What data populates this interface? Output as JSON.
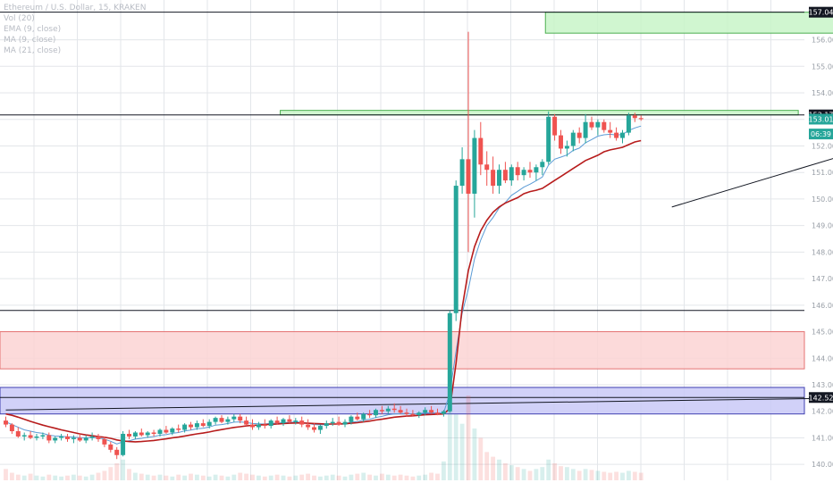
{
  "header": {
    "symbol_line": "Ethereum / U.S. Dollar, 15, KRAKEN",
    "indicators": [
      "Vol (20)",
      "EMA (9, close)",
      "MA (9, close)",
      "MA (21, close)"
    ]
  },
  "colors": {
    "up": "#26a69a",
    "down": "#ef5350",
    "ema": "#5b9bd5",
    "ma_slow": "#b71c1c",
    "resistance_zone": "#c8f5c8",
    "supply_zone": "#fbd3d3",
    "demand_zone": "#c9c9f7",
    "tag_dark": "#131722",
    "tag_teal": "#26a69a",
    "tag_blue": "#2962ff"
  },
  "chart_data": {
    "type": "candlestick",
    "ylim": [
      139.4,
      157.5
    ],
    "y_ticks": [
      140.0,
      141.0,
      142.0,
      143.0,
      144.0,
      145.0,
      146.0,
      147.0,
      148.0,
      149.0,
      150.0,
      151.0,
      152.0,
      153.0,
      154.0,
      155.0,
      156.0
    ],
    "price_tags": [
      {
        "label": "157.04",
        "value": 157.04,
        "style": "dark"
      },
      {
        "label": "153.17",
        "value": 153.17,
        "style": "dark"
      },
      {
        "label": "153.01",
        "value": 153.01,
        "style": "teal"
      },
      {
        "label": "06:39",
        "value": 152.45,
        "style": "teal"
      },
      {
        "label": "142.52",
        "value": 142.52,
        "style": "dark"
      }
    ],
    "horizontal_lines": [
      157.04,
      153.17,
      145.8,
      142.52
    ],
    "zones": [
      {
        "name": "top-resistance-box",
        "y1": 157.04,
        "y2": 156.25,
        "x_start": 88,
        "x_end": 197,
        "kind": "resistance"
      },
      {
        "name": "local-resistance-box",
        "y1": 153.34,
        "y2": 153.17,
        "x_start": 45,
        "x_end": 128,
        "kind": "resistance"
      },
      {
        "name": "supply-box",
        "y1": 145.0,
        "y2": 143.6,
        "x_start": 0,
        "x_end": 220,
        "kind": "supply"
      },
      {
        "name": "demand-box",
        "y1": 142.9,
        "y2": 141.9,
        "x_start": 0,
        "x_end": 220,
        "kind": "demand"
      }
    ],
    "trendlines": [
      {
        "x1": 0,
        "y1": 142.05,
        "x2": 152,
        "y2": 142.55
      },
      {
        "x1": 108,
        "y1": 149.7,
        "x2": 157,
        "y2": 153.12
      }
    ],
    "candles": [
      [
        141.65,
        141.8,
        141.4,
        141.5
      ],
      [
        141.5,
        141.55,
        141.15,
        141.25
      ],
      [
        141.25,
        141.4,
        141.0,
        141.05
      ],
      [
        141.05,
        141.2,
        140.9,
        141.1
      ],
      [
        141.1,
        141.25,
        140.95,
        141.0
      ],
      [
        141.0,
        141.15,
        140.9,
        141.05
      ],
      [
        141.05,
        141.2,
        140.95,
        141.1
      ],
      [
        141.1,
        141.2,
        140.8,
        140.9
      ],
      [
        140.9,
        141.05,
        140.8,
        141.0
      ],
      [
        141.0,
        141.15,
        140.9,
        141.05
      ],
      [
        141.05,
        141.15,
        140.85,
        140.95
      ],
      [
        140.95,
        141.1,
        140.8,
        141.0
      ],
      [
        141.0,
        141.15,
        140.85,
        140.9
      ],
      [
        140.9,
        141.1,
        140.8,
        141.0
      ],
      [
        141.0,
        141.2,
        140.9,
        141.05
      ],
      [
        141.05,
        141.15,
        140.85,
        140.95
      ],
      [
        140.95,
        141.05,
        140.65,
        140.75
      ],
      [
        140.75,
        140.85,
        140.45,
        140.55
      ],
      [
        140.55,
        140.65,
        140.2,
        140.35
      ],
      [
        140.35,
        141.25,
        140.3,
        141.15
      ],
      [
        141.15,
        141.3,
        140.95,
        141.05
      ],
      [
        141.05,
        141.25,
        140.95,
        141.2
      ],
      [
        141.2,
        141.35,
        141.05,
        141.1
      ],
      [
        141.1,
        141.25,
        141.0,
        141.2
      ],
      [
        141.2,
        141.3,
        141.05,
        141.15
      ],
      [
        141.15,
        141.35,
        141.05,
        141.3
      ],
      [
        141.3,
        141.45,
        141.15,
        141.2
      ],
      [
        141.2,
        141.4,
        141.1,
        141.35
      ],
      [
        141.35,
        141.5,
        141.2,
        141.3
      ],
      [
        141.3,
        141.55,
        141.2,
        141.5
      ],
      [
        141.5,
        141.6,
        141.3,
        141.4
      ],
      [
        141.4,
        141.65,
        141.3,
        141.55
      ],
      [
        141.55,
        141.7,
        141.4,
        141.45
      ],
      [
        141.45,
        141.7,
        141.35,
        141.6
      ],
      [
        141.6,
        141.8,
        141.5,
        141.75
      ],
      [
        141.75,
        141.85,
        141.55,
        141.6
      ],
      [
        141.6,
        141.8,
        141.5,
        141.7
      ],
      [
        141.7,
        141.9,
        141.6,
        141.8
      ],
      [
        141.8,
        141.9,
        141.55,
        141.65
      ],
      [
        141.65,
        141.8,
        141.45,
        141.5
      ],
      [
        141.5,
        141.7,
        141.3,
        141.4
      ],
      [
        141.4,
        141.6,
        141.3,
        141.5
      ],
      [
        141.5,
        141.7,
        141.35,
        141.45
      ],
      [
        141.45,
        141.7,
        141.35,
        141.65
      ],
      [
        141.65,
        141.8,
        141.5,
        141.55
      ],
      [
        141.55,
        141.75,
        141.45,
        141.7
      ],
      [
        141.7,
        141.85,
        141.55,
        141.6
      ],
      [
        141.6,
        141.75,
        141.5,
        141.65
      ],
      [
        141.65,
        141.8,
        141.4,
        141.5
      ],
      [
        141.5,
        141.7,
        141.3,
        141.4
      ],
      [
        141.4,
        141.55,
        141.2,
        141.3
      ],
      [
        141.3,
        141.5,
        141.15,
        141.45
      ],
      [
        141.45,
        141.65,
        141.35,
        141.55
      ],
      [
        141.55,
        141.75,
        141.45,
        141.6
      ],
      [
        141.6,
        141.8,
        141.45,
        141.5
      ],
      [
        141.5,
        141.7,
        141.4,
        141.6
      ],
      [
        141.6,
        141.85,
        141.5,
        141.8
      ],
      [
        141.8,
        141.95,
        141.65,
        141.7
      ],
      [
        141.7,
        141.95,
        141.6,
        141.9
      ],
      [
        141.9,
        142.05,
        141.75,
        141.85
      ],
      [
        141.85,
        142.1,
        141.75,
        142.05
      ],
      [
        142.05,
        142.2,
        141.9,
        142.0
      ],
      [
        142.0,
        142.2,
        141.9,
        142.1
      ],
      [
        142.1,
        142.3,
        141.95,
        142.05
      ],
      [
        142.05,
        142.2,
        141.9,
        141.95
      ],
      [
        141.95,
        142.1,
        141.8,
        141.9
      ],
      [
        141.9,
        142.05,
        141.8,
        141.85
      ],
      [
        141.85,
        142.0,
        141.75,
        141.95
      ],
      [
        141.95,
        142.15,
        141.85,
        142.05
      ],
      [
        142.05,
        142.2,
        141.9,
        141.95
      ],
      [
        141.95,
        142.1,
        141.85,
        141.9
      ],
      [
        141.9,
        142.05,
        141.8,
        142.0
      ],
      [
        142.0,
        145.8,
        141.95,
        145.7
      ],
      [
        145.7,
        150.7,
        145.4,
        150.5
      ],
      [
        150.5,
        151.95,
        150.2,
        151.5
      ],
      [
        151.5,
        156.3,
        148.0,
        150.2
      ],
      [
        150.2,
        152.6,
        149.3,
        152.3
      ],
      [
        152.3,
        152.9,
        150.9,
        151.3
      ],
      [
        151.3,
        151.8,
        150.5,
        151.1
      ],
      [
        151.1,
        151.6,
        150.2,
        150.5
      ],
      [
        150.5,
        151.3,
        150.2,
        151.1
      ],
      [
        151.1,
        151.4,
        150.6,
        150.7
      ],
      [
        150.7,
        151.3,
        150.5,
        151.2
      ],
      [
        151.2,
        151.4,
        150.7,
        150.9
      ],
      [
        150.9,
        151.2,
        150.7,
        151.1
      ],
      [
        151.1,
        151.4,
        150.8,
        151.0
      ],
      [
        151.0,
        151.3,
        150.7,
        151.2
      ],
      [
        151.2,
        151.5,
        150.9,
        151.4
      ],
      [
        151.4,
        153.3,
        151.3,
        153.1
      ],
      [
        153.1,
        153.2,
        152.2,
        152.4
      ],
      [
        152.4,
        152.6,
        151.7,
        151.9
      ],
      [
        151.9,
        152.2,
        151.6,
        152.0
      ],
      [
        152.0,
        152.6,
        151.8,
        152.5
      ],
      [
        152.5,
        152.7,
        152.1,
        152.3
      ],
      [
        152.3,
        153.2,
        152.1,
        152.9
      ],
      [
        152.9,
        153.1,
        152.6,
        152.7
      ],
      [
        152.7,
        153.0,
        152.4,
        152.9
      ],
      [
        152.9,
        153.0,
        152.5,
        152.6
      ],
      [
        152.6,
        152.9,
        152.3,
        152.5
      ],
      [
        152.5,
        152.7,
        152.2,
        152.3
      ],
      [
        152.3,
        152.6,
        152.1,
        152.5
      ],
      [
        152.5,
        153.25,
        152.4,
        153.15
      ],
      [
        153.15,
        153.25,
        152.9,
        153.05
      ],
      [
        153.05,
        153.15,
        152.95,
        153.01
      ]
    ],
    "ema_fast": [
      141.6,
      141.5,
      141.4,
      141.3,
      141.25,
      141.2,
      141.17,
      141.1,
      141.07,
      141.06,
      141.04,
      141.03,
      141.0,
      141.0,
      141.01,
      141.0,
      140.95,
      140.87,
      140.77,
      140.85,
      140.89,
      140.95,
      140.98,
      141.02,
      141.05,
      141.1,
      141.12,
      141.17,
      141.2,
      141.26,
      141.29,
      141.34,
      141.36,
      141.41,
      141.48,
      141.5,
      141.54,
      141.59,
      141.6,
      141.58,
      141.54,
      141.53,
      141.52,
      141.55,
      141.55,
      141.58,
      141.58,
      141.6,
      141.58,
      141.55,
      141.5,
      141.49,
      141.5,
      141.52,
      141.52,
      141.54,
      141.59,
      141.61,
      141.67,
      141.7,
      141.77,
      141.81,
      141.87,
      141.9,
      141.91,
      141.91,
      141.9,
      141.91,
      141.94,
      141.94,
      141.93,
      141.94,
      142.69,
      144.25,
      145.7,
      146.6,
      147.74,
      148.45,
      149.0,
      149.3,
      149.66,
      149.87,
      150.14,
      150.29,
      150.45,
      150.56,
      150.69,
      150.83,
      151.28,
      151.5,
      151.58,
      151.66,
      151.83,
      151.92,
      152.12,
      152.24,
      152.37,
      152.42,
      152.44,
      152.41,
      152.43,
      152.58,
      152.68,
      152.75
    ],
    "ma_slow": [
      141.9,
      141.85,
      141.78,
      141.7,
      141.62,
      141.55,
      141.48,
      141.42,
      141.36,
      141.3,
      141.25,
      141.2,
      141.15,
      141.11,
      141.08,
      141.05,
      141.02,
      140.98,
      140.92,
      140.88,
      140.86,
      140.85,
      140.86,
      140.88,
      140.9,
      140.93,
      140.96,
      141.0,
      141.03,
      141.07,
      141.11,
      141.15,
      141.18,
      141.22,
      141.27,
      141.31,
      141.35,
      141.39,
      141.42,
      141.45,
      141.47,
      141.48,
      141.5,
      141.51,
      141.52,
      141.54,
      141.55,
      141.56,
      141.56,
      141.55,
      141.54,
      141.53,
      141.52,
      141.52,
      141.52,
      141.53,
      141.55,
      141.57,
      141.6,
      141.63,
      141.67,
      141.7,
      141.74,
      141.78,
      141.8,
      141.82,
      141.83,
      141.85,
      141.87,
      141.88,
      141.89,
      141.9,
      142.1,
      143.8,
      145.9,
      147.3,
      148.2,
      148.8,
      149.2,
      149.5,
      149.7,
      149.85,
      149.95,
      150.05,
      150.2,
      150.28,
      150.33,
      150.4,
      150.55,
      150.7,
      150.85,
      151.0,
      151.15,
      151.3,
      151.45,
      151.55,
      151.65,
      151.78,
      151.85,
      151.9,
      151.95,
      152.05,
      152.15,
      152.2
    ],
    "volume": [
      12,
      8,
      6,
      5,
      7,
      5,
      4,
      6,
      5,
      4,
      5,
      6,
      5,
      4,
      6,
      8,
      10,
      14,
      18,
      22,
      12,
      8,
      7,
      6,
      5,
      6,
      5,
      4,
      6,
      5,
      7,
      6,
      5,
      4,
      6,
      5,
      4,
      6,
      8,
      7,
      6,
      5,
      4,
      5,
      6,
      5,
      4,
      5,
      6,
      7,
      5,
      4,
      5,
      6,
      5,
      4,
      6,
      7,
      8,
      6,
      5,
      7,
      6,
      5,
      6,
      5,
      4,
      5,
      6,
      8,
      7,
      20,
      80,
      70,
      60,
      90,
      55,
      45,
      30,
      25,
      22,
      18,
      16,
      14,
      12,
      10,
      12,
      14,
      22,
      18,
      15,
      14,
      12,
      10,
      12,
      11,
      10,
      9,
      8,
      9,
      8,
      10,
      9,
      8
    ]
  }
}
